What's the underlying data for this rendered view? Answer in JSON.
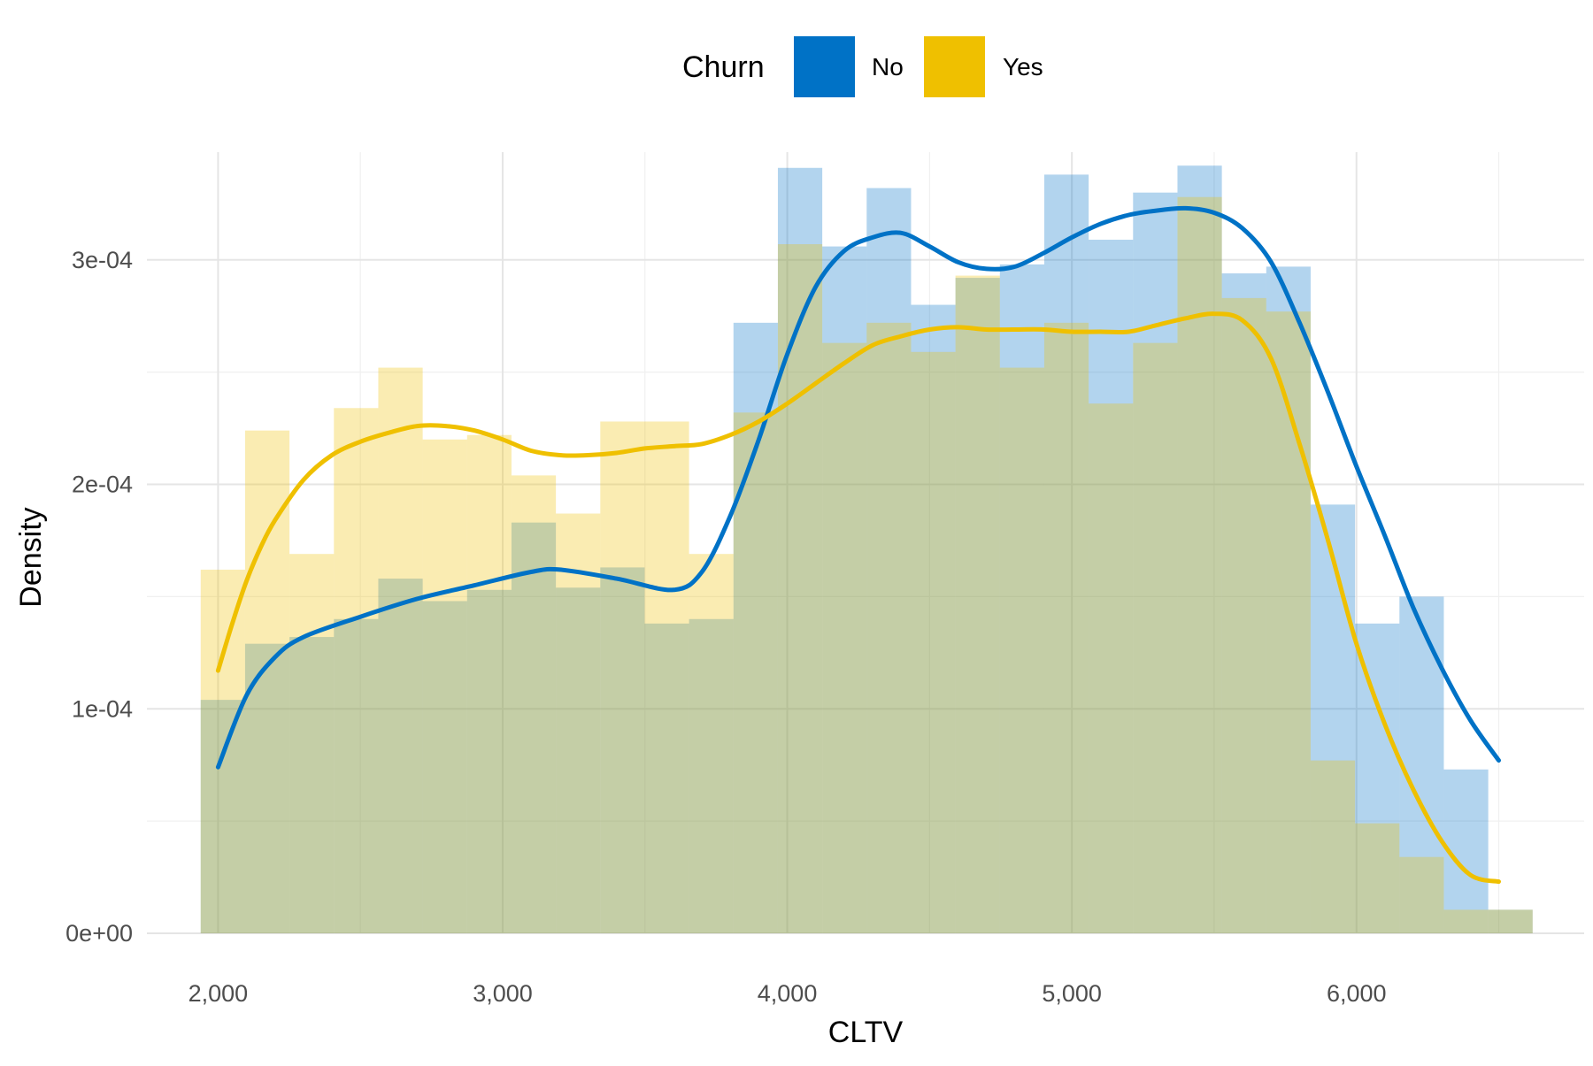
{
  "chart_data": {
    "type": "histogram-density",
    "xlabel": "CLTV",
    "ylabel": "Density",
    "legend": {
      "title": "Churn",
      "placement": "top",
      "entries": [
        {
          "label": "No",
          "color": "#0072C6"
        },
        {
          "label": "Yes",
          "color": "#EFC000"
        }
      ]
    },
    "xlim": [
      1750,
      6800
    ],
    "ylim": [
      0,
      0.000348
    ],
    "x_ticks": [
      {
        "value": 2000,
        "label": "2,000"
      },
      {
        "value": 3000,
        "label": "3,000"
      },
      {
        "value": 4000,
        "label": "4,000"
      },
      {
        "value": 5000,
        "label": "5,000"
      },
      {
        "value": 6000,
        "label": "6,000"
      }
    ],
    "y_ticks": [
      {
        "value": 0,
        "label": "0e+00"
      },
      {
        "value": 0.0001,
        "label": "1e-04"
      },
      {
        "value": 0.0002,
        "label": "2e-04"
      },
      {
        "value": 0.0003,
        "label": "3e-04"
      }
    ],
    "grid": true,
    "bin_edges": [
      1939,
      2095,
      2251,
      2407,
      2563,
      2719,
      2875,
      3031,
      3187,
      3343,
      3499,
      3655,
      3811,
      3967,
      4123,
      4279,
      4435,
      4591,
      4747,
      4903,
      5059,
      5215,
      5371,
      5527,
      5683,
      5839,
      5995,
      6151,
      6307,
      6463,
      6619
    ],
    "series": [
      {
        "name": "No",
        "color": "#0072C6",
        "hist": [
          0.000104,
          0.000129,
          0.000132,
          0.00014,
          0.000158,
          0.000148,
          0.000153,
          0.000183,
          0.000154,
          0.000163,
          0.000138,
          0.00014,
          0.000272,
          0.000341,
          0.000306,
          0.000332,
          0.00028,
          0.000292,
          0.000298,
          0.000338,
          0.000309,
          0.00033,
          0.000342,
          0.000294,
          0.000297,
          0.000191,
          0.000138,
          0.00015,
          7.3e-05,
          1.05e-05
        ],
        "density": [
          [
            2000,
            7.4e-05
          ],
          [
            2100,
            0.000106
          ],
          [
            2200,
            0.000123
          ],
          [
            2300,
            0.000132
          ],
          [
            2500,
            0.000141
          ],
          [
            2700,
            0.000149
          ],
          [
            2900,
            0.000155
          ],
          [
            3100,
            0.000161
          ],
          [
            3200,
            0.000162
          ],
          [
            3400,
            0.000158
          ],
          [
            3600,
            0.000153
          ],
          [
            3700,
            0.000161
          ],
          [
            3800,
            0.000186
          ],
          [
            3900,
            0.00022
          ],
          [
            4000,
            0.000258
          ],
          [
            4100,
            0.000288
          ],
          [
            4200,
            0.000304
          ],
          [
            4300,
            0.00031
          ],
          [
            4400,
            0.000312
          ],
          [
            4500,
            0.000306
          ],
          [
            4600,
            0.000299
          ],
          [
            4700,
            0.000296
          ],
          [
            4800,
            0.000297
          ],
          [
            4900,
            0.000303
          ],
          [
            5000,
            0.00031
          ],
          [
            5100,
            0.000316
          ],
          [
            5200,
            0.00032
          ],
          [
            5300,
            0.000322
          ],
          [
            5400,
            0.000323
          ],
          [
            5500,
            0.000321
          ],
          [
            5600,
            0.000314
          ],
          [
            5700,
            0.000299
          ],
          [
            5800,
            0.000272
          ],
          [
            5900,
            0.000241
          ],
          [
            6000,
            0.000208
          ],
          [
            6100,
            0.000177
          ],
          [
            6200,
            0.000145
          ],
          [
            6300,
            0.000118
          ],
          [
            6400,
            9.5e-05
          ],
          [
            6500,
            7.7e-05
          ]
        ]
      },
      {
        "name": "Yes",
        "color": "#EFC000",
        "hist": [
          0.000162,
          0.000224,
          0.000169,
          0.000234,
          0.000252,
          0.00022,
          0.000222,
          0.000204,
          0.000187,
          0.000228,
          0.000228,
          0.000169,
          0.000232,
          0.000307,
          0.000263,
          0.000272,
          0.000259,
          0.000293,
          0.000252,
          0.000272,
          0.000236,
          0.000263,
          0.000328,
          0.000283,
          0.000277,
          7.7e-05,
          4.9e-05,
          3.4e-05,
          1.05e-05,
          1.05e-05
        ],
        "density": [
          [
            2000,
            0.000117
          ],
          [
            2050,
            0.000138
          ],
          [
            2100,
            0.000157
          ],
          [
            2150,
            0.000172
          ],
          [
            2200,
            0.000184
          ],
          [
            2300,
            0.000202
          ],
          [
            2400,
            0.000213
          ],
          [
            2500,
            0.000219
          ],
          [
            2600,
            0.000223
          ],
          [
            2700,
            0.000226
          ],
          [
            2800,
            0.000226
          ],
          [
            2900,
            0.000224
          ],
          [
            3000,
            0.00022
          ],
          [
            3100,
            0.000215
          ],
          [
            3200,
            0.000213
          ],
          [
            3300,
            0.000213
          ],
          [
            3400,
            0.000214
          ],
          [
            3500,
            0.000216
          ],
          [
            3600,
            0.000217
          ],
          [
            3700,
            0.000218
          ],
          [
            3800,
            0.000222
          ],
          [
            3900,
            0.000228
          ],
          [
            4000,
            0.000236
          ],
          [
            4100,
            0.000245
          ],
          [
            4200,
            0.000254
          ],
          [
            4300,
            0.000262
          ],
          [
            4400,
            0.000266
          ],
          [
            4500,
            0.000269
          ],
          [
            4600,
            0.00027
          ],
          [
            4700,
            0.000269
          ],
          [
            4800,
            0.000269
          ],
          [
            4900,
            0.000269
          ],
          [
            5000,
            0.000268
          ],
          [
            5100,
            0.000268
          ],
          [
            5200,
            0.000268
          ],
          [
            5300,
            0.000271
          ],
          [
            5400,
            0.000274
          ],
          [
            5500,
            0.000276
          ],
          [
            5600,
            0.000273
          ],
          [
            5700,
            0.000256
          ],
          [
            5800,
            0.000218
          ],
          [
            5900,
            0.000175
          ],
          [
            6000,
            0.000129
          ],
          [
            6100,
            9.3e-05
          ],
          [
            6200,
            6.4e-05
          ],
          [
            6300,
            4.1e-05
          ],
          [
            6400,
            2.6e-05
          ],
          [
            6500,
            2.3e-05
          ]
        ]
      }
    ]
  }
}
